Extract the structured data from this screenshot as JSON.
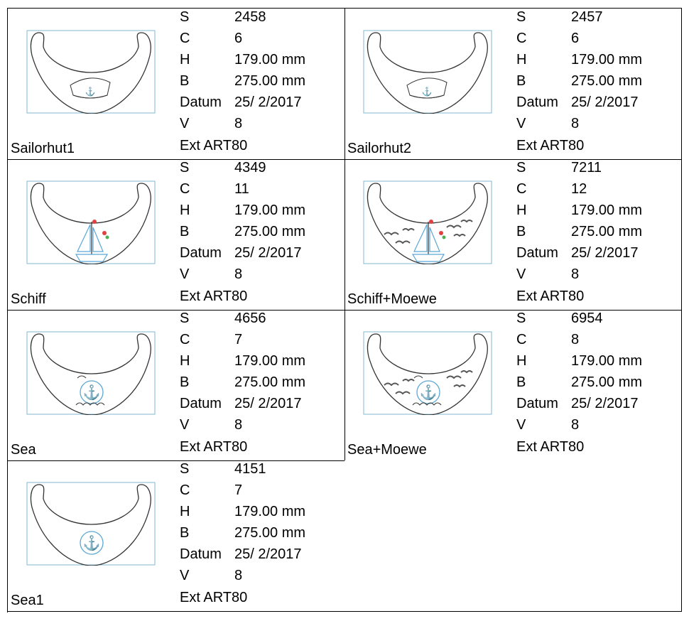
{
  "designs": [
    {
      "name": "Sailorhut1",
      "S": "2458",
      "C": "6",
      "H": "179.00 mm",
      "B": "275.00 mm",
      "Datum": "25/ 2/2017",
      "V": "8",
      "Ext": "Ext  ART80",
      "motif": "hat"
    },
    {
      "name": "Sailorhut2",
      "S": "2457",
      "C": "6",
      "H": "179.00 mm",
      "B": "275.00 mm",
      "Datum": "25/ 2/2017",
      "V": "8",
      "Ext": "Ext  ART80",
      "motif": "hat"
    },
    {
      "name": "Schiff",
      "S": "4349",
      "C": "11",
      "H": "179.00 mm",
      "B": "275.00 mm",
      "Datum": "25/ 2/2017",
      "V": "8",
      "Ext": "Ext  ART80",
      "motif": "ship"
    },
    {
      "name": "Schiff+Moewe",
      "S": "7211",
      "C": "12",
      "H": "179.00 mm",
      "B": "275.00 mm",
      "Datum": "25/ 2/2017",
      "V": "8",
      "Ext": "Ext  ART80",
      "motif": "ship-gulls"
    },
    {
      "name": "Sea",
      "S": "4656",
      "C": "7",
      "H": "179.00 mm",
      "B": "275.00 mm",
      "Datum": "25/ 2/2017",
      "V": "8",
      "Ext": "Ext  ART80",
      "motif": "anchor-sea"
    },
    {
      "name": "Sea+Moewe",
      "S": "6954",
      "C": "8",
      "H": "179.00 mm",
      "B": "275.00 mm",
      "Datum": "25/ 2/2017",
      "V": "8",
      "Ext": "Ext  ART80",
      "motif": "anchor-sea-gulls"
    },
    {
      "name": "Sea1",
      "S": "4151",
      "C": "7",
      "H": "179.00 mm",
      "B": "275.00 mm",
      "Datum": "25/ 2/2017",
      "V": "8",
      "Ext": "Ext  ART80",
      "motif": "anchor"
    }
  ],
  "field_keys": [
    "S",
    "C",
    "H",
    "B",
    "Datum",
    "V"
  ],
  "colors": {
    "outline": "#333333",
    "hoop": "#7fb8d0",
    "accent": "#5aa6d6",
    "flag": "#e04040",
    "leaf": "#4caf50",
    "gull": "#555555"
  }
}
